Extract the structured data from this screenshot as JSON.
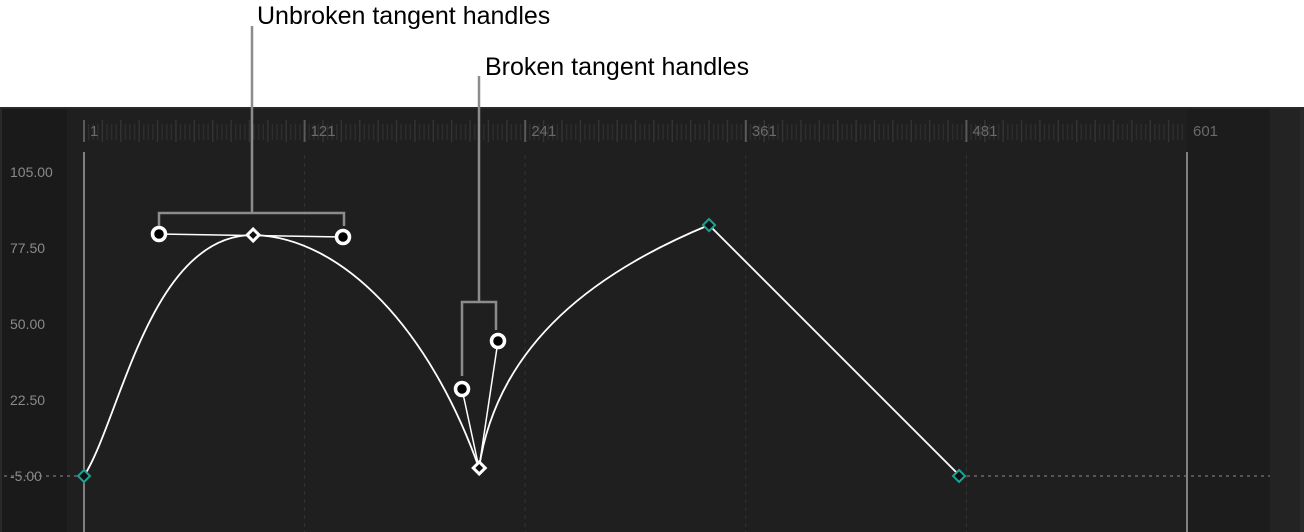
{
  "callouts": {
    "unbroken": "Unbroken tangent handles",
    "broken": "Broken tangent handles"
  },
  "ruler": {
    "ticks": [
      "1",
      "121",
      "241",
      "361",
      "481",
      "601"
    ]
  },
  "value_axis": {
    "labels": [
      "105.00",
      "77.50",
      "50.00",
      "22.50",
      "-5.00"
    ]
  },
  "keyframes": [
    {
      "frame": 1,
      "value": -5.0,
      "state": "unselected"
    },
    {
      "frame": 93,
      "value": 82.2,
      "state": "selected"
    },
    {
      "frame": 216,
      "value": -2.1,
      "state": "selected"
    },
    {
      "frame": 341,
      "value": 85.8,
      "state": "unselected"
    },
    {
      "frame": 477,
      "value": -5.0,
      "state": "unselected"
    }
  ],
  "colors": {
    "background": "#1f1f1f",
    "gutter": "#191919",
    "curve": "#ffffff",
    "keyframe_unselected": "#1aa394",
    "keyframe_selected": "#ffffff",
    "callout_line": "#8c8c8c"
  }
}
